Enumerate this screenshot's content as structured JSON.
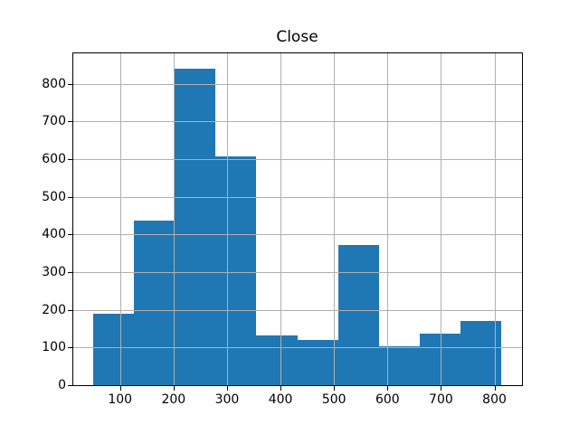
{
  "figure": {
    "kind": "matplotlib-histogram-figure",
    "background": "#ffffff"
  },
  "chart_data": {
    "type": "bar",
    "subtype": "histogram",
    "title": "Close",
    "xlabel": "",
    "ylabel": "",
    "bin_edges": [
      49.0,
      125.4,
      201.9,
      278.3,
      354.7,
      431.2,
      507.6,
      584.0,
      660.4,
      736.9,
      813.3
    ],
    "counts": [
      190,
      437,
      841,
      607,
      132,
      119,
      372,
      103,
      136,
      170
    ],
    "x_tick_labels": [
      "100",
      "200",
      "300",
      "400",
      "500",
      "600",
      "700",
      "800"
    ],
    "x_tick_values": [
      100,
      200,
      300,
      400,
      500,
      600,
      700,
      800
    ],
    "y_tick_labels": [
      "0",
      "100",
      "200",
      "300",
      "400",
      "500",
      "600",
      "700",
      "800"
    ],
    "y_tick_values": [
      0,
      100,
      200,
      300,
      400,
      500,
      600,
      700,
      800
    ],
    "xlim": [
      10.8,
      851.5
    ],
    "ylim": [
      0,
      883
    ],
    "grid": true,
    "grid_above_bars": true,
    "legend": null,
    "bar_color": "#1f77b4",
    "grid_color": "#b0b0b0",
    "spine_color": "#000000",
    "text_color": "#000000",
    "background": "#ffffff"
  }
}
